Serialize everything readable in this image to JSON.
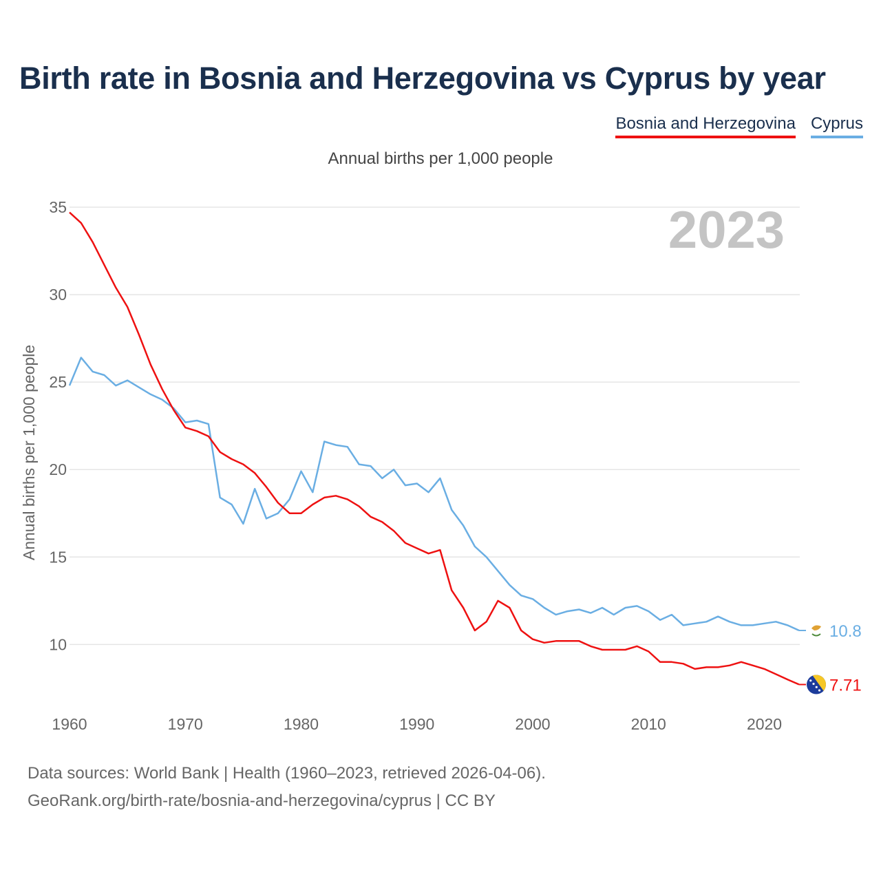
{
  "title": "Birth rate in Bosnia and Herzegovina vs Cyprus by year",
  "legend": [
    {
      "label": "Bosnia and Herzegovina",
      "color": "#ee1111"
    },
    {
      "label": "Cyprus",
      "color": "#6aaee3"
    }
  ],
  "colors": {
    "text": "#1a2f4d",
    "grid": "#e5e5e5",
    "axis_text": "#666666",
    "year_watermark": "#c4c4c4"
  },
  "sources": {
    "line1": "Data sources: World Bank | Health (1960–2023, retrieved 2026-04-06).",
    "line2": "GeoRank.org/birth-rate/bosnia-and-herzegovina/cyprus | CC BY"
  },
  "chart_data": {
    "type": "line",
    "title": "Birth rate in Bosnia and Herzegovina vs Cyprus by year",
    "subtitle": "Annual births per 1,000 people",
    "xlabel": "",
    "ylabel": "Annual births per 1,000 people",
    "year_label": "2023",
    "xlim": [
      1960,
      2023
    ],
    "ylim": [
      6,
      35
    ],
    "x_ticks": [
      1960,
      1970,
      1980,
      1990,
      2000,
      2010,
      2020
    ],
    "y_ticks": [
      10,
      15,
      20,
      25,
      30,
      35
    ],
    "x": [
      1960,
      1961,
      1962,
      1963,
      1964,
      1965,
      1966,
      1967,
      1968,
      1969,
      1970,
      1971,
      1972,
      1973,
      1974,
      1975,
      1976,
      1977,
      1978,
      1979,
      1980,
      1981,
      1982,
      1983,
      1984,
      1985,
      1986,
      1987,
      1988,
      1989,
      1990,
      1991,
      1992,
      1993,
      1994,
      1995,
      1996,
      1997,
      1998,
      1999,
      2000,
      2001,
      2002,
      2003,
      2004,
      2005,
      2006,
      2007,
      2008,
      2009,
      2010,
      2011,
      2012,
      2013,
      2014,
      2015,
      2016,
      2017,
      2018,
      2019,
      2020,
      2021,
      2022,
      2023
    ],
    "series": [
      {
        "name": "Bosnia and Herzegovina",
        "color": "#ee1111",
        "end_label": "7.71",
        "flag": "bosnia-flag-icon",
        "values": [
          34.7,
          34.1,
          33.0,
          31.7,
          30.4,
          29.3,
          27.7,
          26.0,
          24.6,
          23.4,
          22.4,
          22.2,
          21.9,
          21.0,
          20.6,
          20.3,
          19.8,
          19.0,
          18.1,
          17.5,
          17.5,
          18.0,
          18.4,
          18.5,
          18.3,
          17.9,
          17.3,
          17.0,
          16.5,
          15.8,
          15.5,
          15.2,
          15.4,
          13.1,
          12.1,
          10.8,
          11.3,
          12.5,
          12.1,
          10.8,
          10.3,
          10.1,
          10.2,
          10.2,
          10.2,
          9.9,
          9.7,
          9.7,
          9.7,
          9.9,
          9.6,
          9.0,
          9.0,
          8.9,
          8.6,
          8.7,
          8.7,
          8.8,
          9.0,
          8.8,
          8.6,
          8.3,
          8.0,
          7.71
        ]
      },
      {
        "name": "Cyprus",
        "color": "#6aaee3",
        "end_label": "10.8",
        "flag": "cyprus-flag-icon",
        "values": [
          24.8,
          26.4,
          25.6,
          25.4,
          24.8,
          25.1,
          24.7,
          24.3,
          24.0,
          23.5,
          22.7,
          22.8,
          22.6,
          18.4,
          18.0,
          16.9,
          18.9,
          17.2,
          17.5,
          18.3,
          19.9,
          18.7,
          21.6,
          21.4,
          21.3,
          20.3,
          20.2,
          19.5,
          20.0,
          19.1,
          19.2,
          18.7,
          19.5,
          17.7,
          16.8,
          15.6,
          15.0,
          14.2,
          13.4,
          12.8,
          12.6,
          12.1,
          11.7,
          11.9,
          12.0,
          11.8,
          12.1,
          11.7,
          12.1,
          12.2,
          11.9,
          11.4,
          11.7,
          11.1,
          11.2,
          11.3,
          11.6,
          11.3,
          11.1,
          11.1,
          11.2,
          11.3,
          11.1,
          10.8
        ]
      }
    ]
  }
}
